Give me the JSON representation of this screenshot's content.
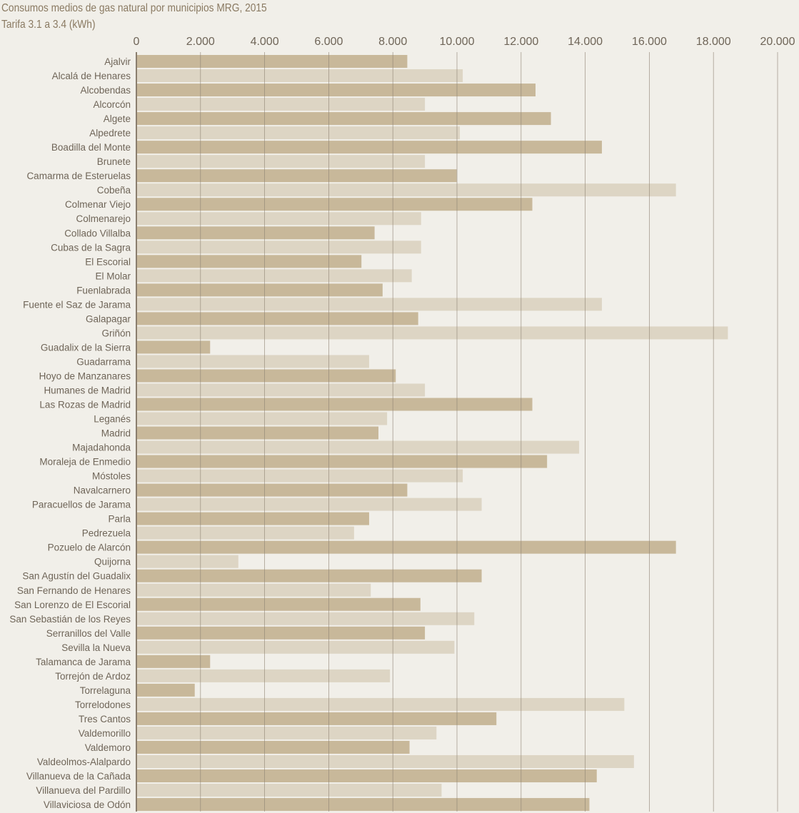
{
  "chart_data": {
    "type": "bar",
    "orientation": "horizontal",
    "title": "Consumos medios de gas natural por municipios MRG, 2015",
    "subtitle": "Tarifa 3.1 a 3.4 (kWh)",
    "xlabel": "",
    "ylabel": "",
    "xlim": [
      0,
      20000
    ],
    "ticks": [
      0,
      2000,
      4000,
      6000,
      8000,
      10000,
      12000,
      14000,
      16000,
      18000,
      20000
    ],
    "tick_labels": [
      "0",
      "2.000",
      "4.000",
      "6.000",
      "8.000",
      "10.000",
      "12.000",
      "14.000",
      "16.000",
      "18.000",
      "20.000"
    ],
    "grid": true,
    "axis_position": "top",
    "colors": {
      "dark": "#c8b89a",
      "light": "#ddd5c4",
      "grid": "#8d8273",
      "text": "#6f6558",
      "background": "#f1efe9"
    },
    "categories": [
      "Ajalvir",
      "Alcalá de Henares",
      "Alcobendas",
      "Alcorcón",
      "Algete",
      "Alpedrete",
      "Boadilla del Monte",
      "Brunete",
      "Camarma de Esteruelas",
      "Cobeña",
      "Colmenar Viejo",
      "Colmenarejo",
      "Collado Villalba",
      "Cubas de la Sagra",
      "El Escorial",
      "El Molar",
      "Fuenlabrada",
      "Fuente el Saz de Jarama",
      "Galapagar",
      "Griñón",
      "Guadalix de la Sierra",
      "Guadarrama",
      "Hoyo de Manzanares",
      "Humanes de Madrid",
      "Las Rozas de Madrid",
      "Leganés",
      "Madrid",
      "Majadahonda",
      "Moraleja de Enmedio",
      "Móstoles",
      "Navalcarnero",
      "Paracuellos de Jarama",
      "Parla",
      "Pedrezuela",
      "Pozuelo de Alarcón",
      "Quijorna",
      "San Agustín del Guadalix",
      "San Fernando de Henares",
      "San Lorenzo de El Escorial",
      "San Sebastián de los Reyes",
      "Serranillos del Valle",
      "Sevilla la Nueva",
      "Talamanca de Jarama",
      "Torrejón de Ardoz",
      "Torrelaguna",
      "Torrelodones",
      "Tres Cantos",
      "Valdemorillo",
      "Valdemoro",
      "Valdeolmos-Alalpardo",
      "Villanueva de la Cañada",
      "Villanueva del Pardillo",
      "Villaviciosa de Odón"
    ],
    "values": [
      8450,
      10180,
      12450,
      9000,
      12930,
      10090,
      14520,
      9000,
      9990,
      16830,
      12350,
      8880,
      7430,
      8880,
      7020,
      8590,
      7680,
      14520,
      8790,
      18450,
      2300,
      7260,
      8090,
      9000,
      12350,
      7820,
      7550,
      13810,
      12810,
      10180,
      8450,
      10770,
      7260,
      6790,
      16830,
      3180,
      10770,
      7310,
      8860,
      10540,
      9000,
      9920,
      2300,
      7910,
      1820,
      15220,
      11230,
      9360,
      8520,
      15520,
      14360,
      9520,
      14130
    ]
  }
}
